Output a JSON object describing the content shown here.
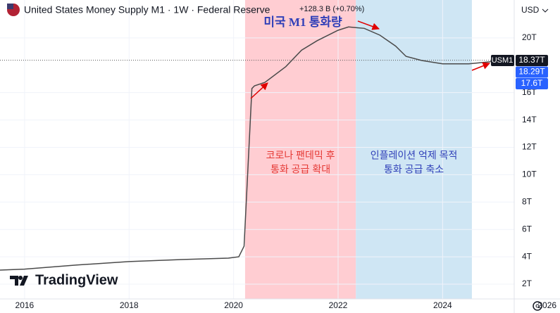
{
  "chart_data": {
    "type": "line",
    "title": "United States Money Supply M1 · 1W · Federal Reserve",
    "change": "+128.3 B (+0.70%)",
    "currency": "USD",
    "brand": "TradingView",
    "annotation_title": "미국 M1 통화량",
    "regions": [
      {
        "x": [
          2020.22,
          2022.34
        ],
        "color": "#ffcdd2",
        "text_color": "#e53935",
        "lines": [
          "코로나 팬데믹 후",
          "통화 공급 확대"
        ]
      },
      {
        "x": [
          2022.34,
          2024.56
        ],
        "color": "#cfe6f4",
        "text_color": "#2f3fb8",
        "lines": [
          "인플레이션 억제 목적",
          "통화 공급 축소"
        ]
      }
    ],
    "series": [
      {
        "name": "USM1",
        "color": "#4a4a4a",
        "x": [
          2015.53,
          2016,
          2017,
          2018,
          2019,
          2019.9,
          2020.1,
          2020.2,
          2020.35,
          2020.4,
          2020.6,
          2021.0,
          2021.3,
          2021.6,
          2022.0,
          2022.2,
          2022.5,
          2022.8,
          2023.1,
          2023.3,
          2023.6,
          2024.0,
          2024.5,
          2024.9,
          2025.0
        ],
        "values": [
          3.03,
          3.1,
          3.4,
          3.65,
          3.8,
          3.9,
          4.0,
          4.78,
          16.3,
          16.5,
          16.75,
          17.9,
          19.1,
          19.8,
          20.56,
          20.8,
          20.7,
          20.2,
          19.4,
          18.65,
          18.35,
          18.1,
          18.1,
          18.25,
          18.37
        ]
      }
    ],
    "price_labels": [
      {
        "value": 18.37,
        "label": "18.37T",
        "color": "#131722"
      },
      {
        "value": 18.29,
        "label": "18.29T",
        "color": "#2962ff"
      },
      {
        "value": 17.6,
        "label": "17.6T",
        "color": "#2962ff"
      }
    ],
    "xlim": [
      2015.53,
      2025.37
    ],
    "xticks": [
      2016,
      2018,
      2020,
      2022,
      2024,
      2026
    ],
    "ylim": [
      0.92,
      22.77
    ],
    "yticks": [
      {
        "value": 2,
        "label": "2T"
      },
      {
        "value": 4,
        "label": "4T"
      },
      {
        "value": 6,
        "label": "6T"
      },
      {
        "value": 8,
        "label": "8T"
      },
      {
        "value": 10,
        "label": "10T"
      },
      {
        "value": 12,
        "label": "12T"
      },
      {
        "value": 14,
        "label": "14T"
      },
      {
        "value": 16,
        "label": "16T"
      },
      {
        "value": 20,
        "label": "20T"
      }
    ],
    "grid": true
  }
}
